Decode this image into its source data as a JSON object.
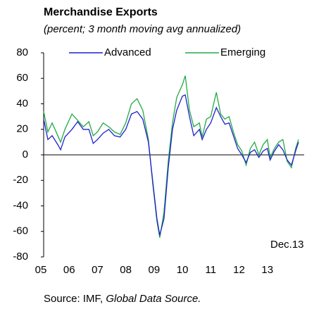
{
  "chart_data": {
    "type": "line",
    "title": "Merchandise Exports",
    "subtitle": "(percent; 3 month moving avg annualized)",
    "annotation": "Dec.13",
    "source": {
      "text": "Source: IMF,",
      "italic": "Global Data Source."
    },
    "legend": "top",
    "xlim": [
      2005,
      2014.2
    ],
    "xticks": [
      {
        "value": 2005,
        "label": "05"
      },
      {
        "value": 2006,
        "label": "06"
      },
      {
        "value": 2007,
        "label": "07"
      },
      {
        "value": 2008,
        "label": "08"
      },
      {
        "value": 2009,
        "label": "09"
      },
      {
        "value": 2010,
        "label": "10"
      },
      {
        "value": 2011,
        "label": "11"
      },
      {
        "value": 2012,
        "label": "12"
      },
      {
        "value": 2013,
        "label": "13"
      }
    ],
    "ylim": [
      -80,
      80
    ],
    "yticks": [
      -80,
      -60,
      -40,
      -20,
      0,
      20,
      40,
      60,
      80
    ],
    "x": [
      2005.0,
      2005.15,
      2005.3,
      2005.5,
      2005.6,
      2005.75,
      2006.0,
      2006.2,
      2006.4,
      2006.6,
      2006.75,
      2006.9,
      2007.1,
      2007.3,
      2007.5,
      2007.7,
      2007.9,
      2008.1,
      2008.3,
      2008.5,
      2008.7,
      2008.85,
      2009.0,
      2009.1,
      2009.25,
      2009.4,
      2009.55,
      2009.7,
      2009.9,
      2010.0,
      2010.15,
      2010.3,
      2010.5,
      2010.6,
      2010.75,
      2010.9,
      2011.1,
      2011.25,
      2011.4,
      2011.55,
      2011.7,
      2011.85,
      2012.0,
      2012.15,
      2012.3,
      2012.45,
      2012.6,
      2012.75,
      2012.9,
      2013.0,
      2013.15,
      2013.3,
      2013.45,
      2013.6,
      2013.75,
      2013.9,
      2014.0
    ],
    "series": [
      {
        "name": "Advanced",
        "color": "#1f1fd0",
        "values": [
          28,
          12,
          15,
          8,
          4,
          14,
          20,
          26,
          20,
          20,
          9,
          12,
          17,
          20,
          15,
          14,
          20,
          32,
          34,
          28,
          10,
          -20,
          -50,
          -63,
          -50,
          -10,
          20,
          35,
          46,
          47,
          30,
          15,
          20,
          12,
          20,
          25,
          37,
          30,
          24,
          25,
          15,
          5,
          0,
          -6,
          2,
          4,
          -2,
          3,
          5,
          -4,
          3,
          8,
          4,
          -4,
          -8,
          3,
          10
        ]
      },
      {
        "name": "Emerging",
        "color": "#22aa44",
        "values": [
          34,
          18,
          25,
          15,
          10,
          20,
          32,
          27,
          22,
          26,
          15,
          18,
          25,
          22,
          18,
          16,
          25,
          40,
          44,
          35,
          12,
          -22,
          -52,
          -65,
          -45,
          -5,
          25,
          45,
          55,
          62,
          35,
          22,
          25,
          14,
          28,
          30,
          49,
          32,
          28,
          30,
          18,
          8,
          3,
          -8,
          5,
          10,
          0,
          8,
          12,
          -2,
          5,
          10,
          12,
          -5,
          -10,
          5,
          12
        ]
      }
    ]
  }
}
